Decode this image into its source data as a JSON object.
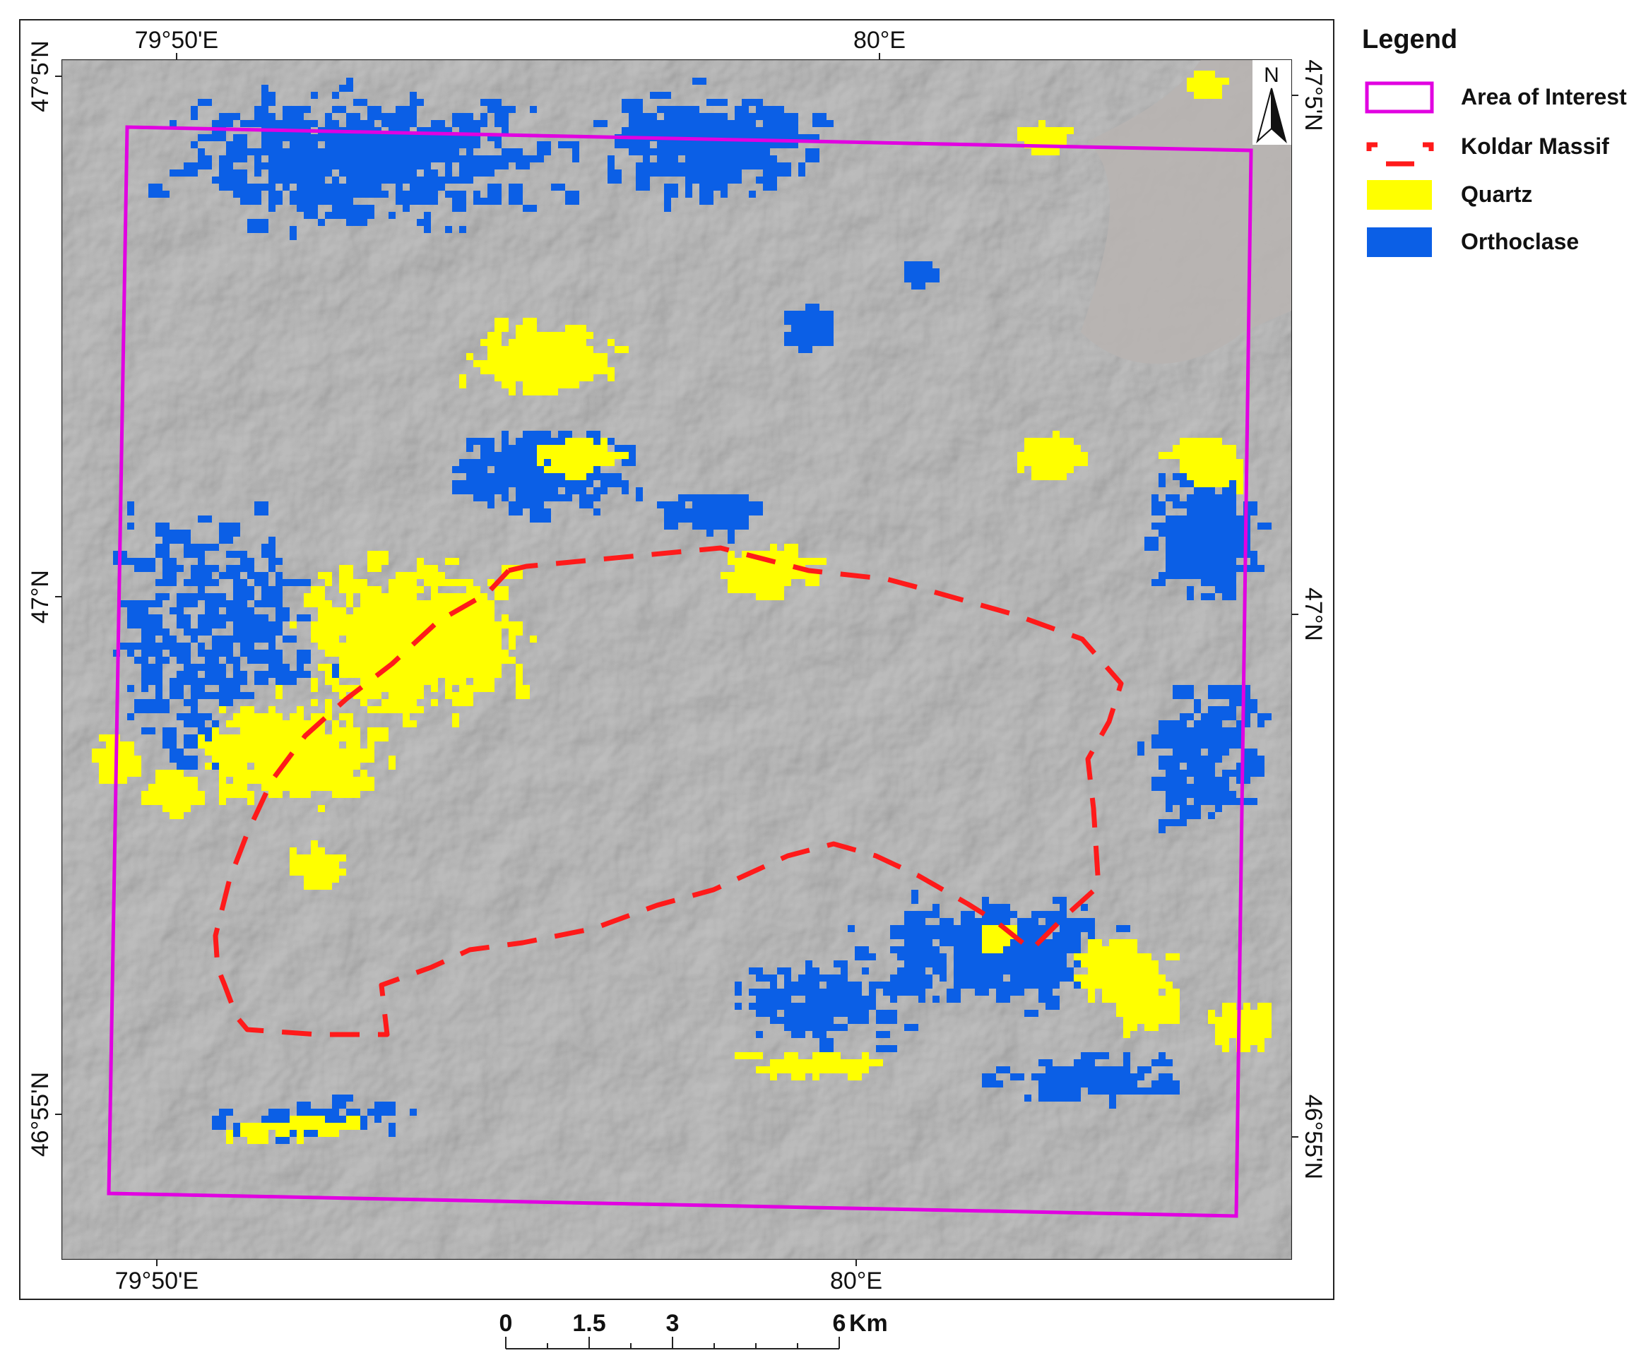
{
  "map": {
    "coords": {
      "top_lon_1": "79°50'E",
      "top_lon_2": "80°E",
      "bottom_lon_1": "79°50'E",
      "bottom_lon_2": "80°E",
      "left_lat_1": "47°5'N",
      "left_lat_2": "47°N",
      "left_lat_3": "46°55'N",
      "right_lat_1": "47°5'N",
      "right_lat_2": "47°N",
      "right_lat_3": "46°55'N"
    },
    "north_arrow": {
      "label": "N",
      "icon": "north-arrow-icon"
    },
    "scale_bar": {
      "labels": [
        "0",
        "1.5",
        "3",
        "6"
      ],
      "unit": "Km"
    },
    "legend": {
      "title": "Legend",
      "items": [
        {
          "label": "Area of Interest",
          "color": "#e100e1",
          "symbol": "outline"
        },
        {
          "label": "Koldar Massif",
          "color": "#ff1a1a",
          "symbol": "dashed-outline"
        },
        {
          "label": "Quartz",
          "color": "#ffff00",
          "symbol": "fill"
        },
        {
          "label": "Orthoclase",
          "color": "#0b5fe6",
          "symbol": "fill"
        }
      ]
    },
    "colors": {
      "basemap": "#a9a9a9",
      "area_of_interest": "#e100e1",
      "koldar_massif": "#ff1a1a",
      "quartz": "#ffff00",
      "orthoclase": "#0b5fe6"
    }
  }
}
